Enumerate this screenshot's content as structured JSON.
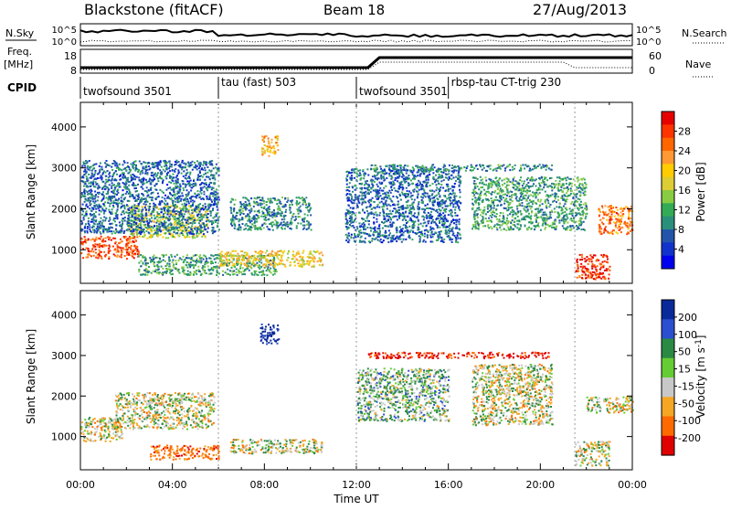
{
  "header": {
    "station": "Blackstone (fitACF)",
    "beam": "Beam 18",
    "date": "27/Aug/2013"
  },
  "side_labels": {
    "nsky": "N.Sky",
    "nsearch": "N.Search",
    "freq": "Freq.",
    "freq_unit": "[MHz]",
    "nave": "Nave",
    "cpid": "CPID"
  },
  "noise_panel": {
    "left_ticks": [
      "10^5",
      "10^0"
    ],
    "right_ticks": [
      "10^5",
      "10^0"
    ]
  },
  "freq_panel": {
    "left_ticks": [
      "18",
      "8"
    ],
    "right_ticks": [
      "60",
      "0"
    ]
  },
  "cpid_segments": [
    {
      "label": "twofsound 3501",
      "start_h": 0.0,
      "end_h": 6.0
    },
    {
      "label": "tau (fast) 503",
      "start_h": 6.0,
      "end_h": 12.0
    },
    {
      "label": "twofsound 3501",
      "start_h": 12.0,
      "end_h": 16.0
    },
    {
      "label": "rbsp-tau CT-trig 230",
      "start_h": 16.0,
      "end_h": 21.5
    }
  ],
  "colorbars": {
    "power": {
      "label": "Power [dB]",
      "ticks": [
        "28",
        "24",
        "20",
        "16",
        "12",
        "8",
        "4"
      ],
      "colors": [
        "#e60000",
        "#ff3300",
        "#ff6600",
        "#ff9933",
        "#ffcc00",
        "#ddcc33",
        "#88cc44",
        "#33aa55",
        "#2a8f7a",
        "#2255aa",
        "#1133cc",
        "#0000ee"
      ]
    },
    "velocity": {
      "label_main": "Velocity [m s",
      "label_sup": "-1",
      "label_end": "]",
      "ticks": [
        "200",
        "100",
        "50",
        "15",
        "-15",
        "-50",
        "-100",
        "-200"
      ],
      "colors": [
        "#0a2a9a",
        "#2b4fd0",
        "#2a8a44",
        "#66cc33",
        "#c8c8c8",
        "#f5a623",
        "#ff6a00",
        "#e00000"
      ]
    }
  },
  "colors": {
    "ground_scatter": "#c0c0c0"
  },
  "chart_data": {
    "type": "heatmap",
    "x_axis": {
      "label": "Time UT",
      "range_h": [
        0,
        24
      ],
      "tick_labels": [
        "00:00",
        "04:00",
        "08:00",
        "12:00",
        "16:00",
        "20:00",
        "00:00"
      ]
    },
    "y_axis": {
      "label": "Slant Range [km]",
      "range_km": [
        180,
        4600
      ],
      "tick_labels": [
        "1000",
        "2000",
        "3000",
        "4000"
      ]
    },
    "power_regions": [
      {
        "t0": 0.0,
        "t1": 2.5,
        "r0": 800,
        "r1": 1350,
        "db": 26
      },
      {
        "t0": 2.0,
        "t1": 5.5,
        "r0": 1300,
        "r1": 2100,
        "db": 16
      },
      {
        "t0": 0.0,
        "t1": 6.0,
        "r0": 1400,
        "r1": 3200,
        "db": 6
      },
      {
        "t0": 2.5,
        "t1": 8.5,
        "r0": 400,
        "r1": 900,
        "db": 10
      },
      {
        "t0": 6.0,
        "t1": 10.5,
        "r0": 600,
        "r1": 1000,
        "db": 18
      },
      {
        "t0": 7.8,
        "t1": 8.6,
        "r0": 3300,
        "r1": 3800,
        "db": 20
      },
      {
        "t0": 6.5,
        "t1": 10.0,
        "r0": 1500,
        "r1": 2300,
        "db": 8
      },
      {
        "t0": 11.5,
        "t1": 16.5,
        "r0": 1200,
        "r1": 3000,
        "db": 6
      },
      {
        "t0": 12.5,
        "t1": 20.5,
        "r0": 2950,
        "r1": 3100,
        "db": 8
      },
      {
        "t0": 17.0,
        "t1": 22.0,
        "r0": 1500,
        "r1": 2800,
        "db": 10
      },
      {
        "t0": 21.5,
        "t1": 23.0,
        "r0": 300,
        "r1": 900,
        "db": 28
      },
      {
        "t0": 22.5,
        "t1": 24.0,
        "r0": 1400,
        "r1": 2100,
        "db": 24
      }
    ],
    "velocity_regions": [
      {
        "t0": 0.0,
        "t1": 1.8,
        "r0": 900,
        "r1": 1500,
        "v": 0
      },
      {
        "t0": 1.5,
        "t1": 5.8,
        "r0": 1200,
        "r1": 2100,
        "v": 0
      },
      {
        "t0": 3.0,
        "t1": 6.0,
        "r0": 450,
        "r1": 800,
        "v": -80
      },
      {
        "t0": 6.5,
        "t1": 10.5,
        "r0": 600,
        "r1": 950,
        "v": 0
      },
      {
        "t0": 7.8,
        "t1": 8.6,
        "r0": 3300,
        "r1": 3800,
        "v": 180
      },
      {
        "t0": 12.0,
        "t1": 16.0,
        "r0": 1400,
        "r1": 2700,
        "v": 30
      },
      {
        "t0": 12.5,
        "t1": 20.5,
        "r0": 2950,
        "r1": 3100,
        "v": -150
      },
      {
        "t0": 17.0,
        "t1": 20.5,
        "r0": 1300,
        "r1": 2800,
        "v": 0
      },
      {
        "t0": 21.5,
        "t1": 23.0,
        "r0": 300,
        "r1": 900,
        "v": 0
      },
      {
        "t0": 22.0,
        "t1": 24.0,
        "r0": 1600,
        "r1": 2000,
        "v": 0
      }
    ]
  }
}
